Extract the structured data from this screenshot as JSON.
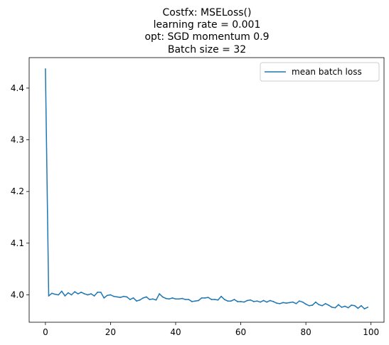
{
  "chart_data": {
    "type": "line",
    "title_lines": [
      "Costfx: MSELoss()",
      "learning rate = 0.001",
      "opt: SGD momentum 0.9",
      "Batch size = 32"
    ],
    "xlabel": "",
    "ylabel": "",
    "xlim": [
      -5,
      104
    ],
    "ylim": [
      3.947,
      4.459
    ],
    "x_ticks": [
      0,
      20,
      40,
      60,
      80,
      100
    ],
    "x_tick_labels": [
      "0",
      "20",
      "40",
      "60",
      "80",
      "100"
    ],
    "y_ticks": [
      4.0,
      4.1,
      4.2,
      4.3,
      4.4
    ],
    "y_tick_labels": [
      "4.0",
      "4.1",
      "4.2",
      "4.3",
      "4.4"
    ],
    "grid": false,
    "legend_position": "top-right",
    "series": [
      {
        "name": "mean batch loss",
        "color": "#1f77b4",
        "x": [
          0,
          1,
          2,
          3,
          4,
          5,
          6,
          7,
          8,
          9,
          10,
          11,
          12,
          13,
          14,
          15,
          16,
          17,
          18,
          19,
          20,
          21,
          22,
          23,
          24,
          25,
          26,
          27,
          28,
          29,
          30,
          31,
          32,
          33,
          34,
          35,
          36,
          37,
          38,
          39,
          40,
          41,
          42,
          43,
          44,
          45,
          46,
          47,
          48,
          49,
          50,
          51,
          52,
          53,
          54,
          55,
          56,
          57,
          58,
          59,
          60,
          61,
          62,
          63,
          64,
          65,
          66,
          67,
          68,
          69,
          70,
          71,
          72,
          73,
          74,
          75,
          76,
          77,
          78,
          79,
          80,
          81,
          82,
          83,
          84,
          85,
          86,
          87,
          88,
          89,
          90,
          91,
          92,
          93,
          94,
          95,
          96,
          97,
          98,
          99
        ],
        "values": [
          4.437,
          3.998,
          4.003,
          4.001,
          4.0,
          4.007,
          3.998,
          4.004,
          4.0,
          4.006,
          4.002,
          4.005,
          4.002,
          4.0,
          4.002,
          3.998,
          4.005,
          4.005,
          3.994,
          3.999,
          4.0,
          3.997,
          3.996,
          3.995,
          3.997,
          3.996,
          3.991,
          3.994,
          3.988,
          3.99,
          3.994,
          3.996,
          3.991,
          3.992,
          3.99,
          4.002,
          3.996,
          3.993,
          3.992,
          3.994,
          3.992,
          3.992,
          3.993,
          3.991,
          3.991,
          3.987,
          3.988,
          3.989,
          3.994,
          3.994,
          3.995,
          3.991,
          3.991,
          3.99,
          3.997,
          3.991,
          3.988,
          3.988,
          3.991,
          3.987,
          3.987,
          3.986,
          3.989,
          3.99,
          3.987,
          3.988,
          3.986,
          3.989,
          3.986,
          3.989,
          3.987,
          3.984,
          3.983,
          3.985,
          3.984,
          3.985,
          3.986,
          3.983,
          3.988,
          3.986,
          3.982,
          3.979,
          3.98,
          3.986,
          3.981,
          3.979,
          3.983,
          3.98,
          3.976,
          3.975,
          3.981,
          3.976,
          3.978,
          3.975,
          3.98,
          3.979,
          3.974,
          3.979,
          3.973,
          3.976
        ]
      }
    ]
  }
}
